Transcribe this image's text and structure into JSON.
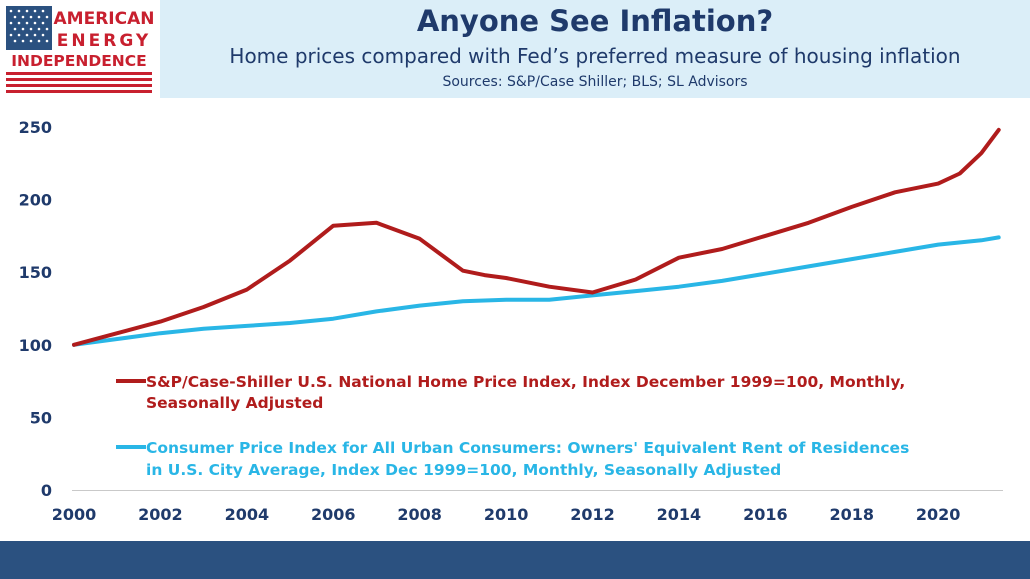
{
  "logo": {
    "line1": "AMERICAN",
    "line2": "ENERGY",
    "line3": "INDEPENDENCE",
    "icon": "us-flag-icon"
  },
  "header": {
    "title": "Anyone See Inflation?",
    "subtitle": "Home prices compared with Fed’s preferred measure of housing inflation",
    "sources": "Sources: S&P/Case Shiller; BLS; SL Advisors"
  },
  "colors": {
    "home_price": "#b01c1c",
    "cpi_oer": "#29b6e6",
    "title_text": "#1f3a6b",
    "header_bg": "#dbeef8",
    "footer_bar": "#2b5180",
    "logo_red": "#c8202f",
    "logo_blue": "#2b5180"
  },
  "chart_data": {
    "type": "line",
    "title": "",
    "xlabel": "",
    "ylabel": "",
    "xlim": [
      2000,
      2021.5
    ],
    "ylim": [
      0,
      250
    ],
    "x_ticks": [
      "2000",
      "2002",
      "2004",
      "2006",
      "2008",
      "2010",
      "2012",
      "2014",
      "2016",
      "2018",
      "2020"
    ],
    "y_ticks": [
      "0",
      "50",
      "100",
      "150",
      "200",
      "250"
    ],
    "grid": false,
    "legend_position": "lower-center",
    "series": [
      {
        "name": "S&P/Case-Shiller U.S. National Home Price Index, Index December 1999=100, Monthly, Seasonally Adjusted",
        "legend_lines": [
          "S&P/Case-Shiller U.S. National Home Price Index, Index December 1999=100, Monthly,",
          "Seasonally Adjusted"
        ],
        "x": [
          2000,
          2001,
          2002,
          2003,
          2004,
          2005,
          2006,
          2006.5,
          2007,
          2008,
          2009,
          2009.5,
          2010,
          2011,
          2012,
          2013,
          2014,
          2015,
          2016,
          2017,
          2018,
          2019,
          2020,
          2020.5,
          2021,
          2021.4
        ],
        "y": [
          100,
          108,
          116,
          126,
          138,
          158,
          182,
          183,
          184,
          173,
          151,
          148,
          146,
          140,
          136,
          145,
          160,
          166,
          175,
          184,
          195,
          205,
          211,
          218,
          232,
          248
        ]
      },
      {
        "name": "Consumer Price Index for All Urban Consumers: Owners' Equivalent Rent of Residences in U.S. City Average, Index Dec 1999=100, Monthly, Seasonally Adjusted",
        "legend_lines": [
          "Consumer Price Index for All Urban Consumers: Owners' Equivalent Rent of Residences",
          "in U.S. City Average, Index Dec 1999=100, Monthly, Seasonally Adjusted"
        ],
        "x": [
          2000,
          2001,
          2002,
          2003,
          2004,
          2005,
          2006,
          2007,
          2008,
          2009,
          2010,
          2011,
          2012,
          2013,
          2014,
          2015,
          2016,
          2017,
          2018,
          2019,
          2020,
          2021,
          2021.4
        ],
        "y": [
          100,
          104,
          108,
          111,
          113,
          115,
          118,
          123,
          127,
          130,
          131,
          131,
          134,
          137,
          140,
          144,
          149,
          154,
          159,
          164,
          169,
          172,
          174
        ]
      }
    ]
  }
}
